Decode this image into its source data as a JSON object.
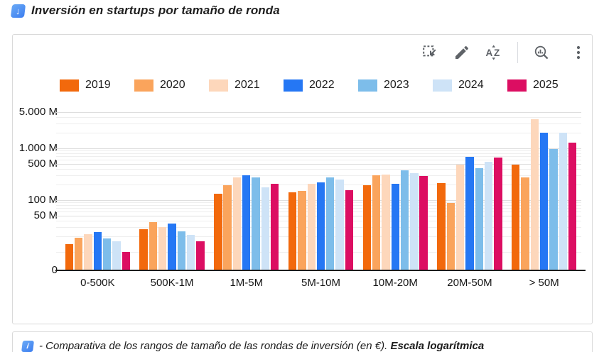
{
  "header": {
    "icon": "down-arrow-emoji",
    "title": "Inversión en startups por tamaño de ronda",
    "icon_glyph": "↓"
  },
  "toolbar": {
    "icons": [
      "select-range-icon",
      "edit-pencil-icon",
      "sort-az-icon",
      "explore-zoom-icon",
      "more-options-icon"
    ]
  },
  "chart_data": {
    "type": "bar",
    "title": "Inversión en startups por tamaño de ronda",
    "x_categories": [
      "0-500K",
      "500K-1M",
      "1M-5M",
      "5M-10M",
      "10M-20M",
      "20M-50M",
      "> 50M"
    ],
    "series": [
      {
        "name": "2019",
        "color": "#F2690C",
        "values": [
          14,
          27,
          133,
          141,
          194,
          213,
          485
        ]
      },
      {
        "name": "2020",
        "color": "#FAA45C",
        "values": [
          19,
          38,
          194,
          151,
          301,
          88,
          276
        ]
      },
      {
        "name": "2021",
        "color": "#FDD7BB",
        "values": [
          22,
          30,
          274,
          207,
          311,
          484,
          3645
        ]
      },
      {
        "name": "2022",
        "color": "#2577F4",
        "values": [
          24,
          35,
          302,
          220,
          207,
          685,
          2000
        ]
      },
      {
        "name": "2023",
        "color": "#7DBDEA",
        "values": [
          18,
          25,
          276,
          274,
          376,
          413,
          970
        ]
      },
      {
        "name": "2024",
        "color": "#CEE3F7",
        "values": [
          16,
          21,
          177,
          250,
          331,
          549,
          1990
        ]
      },
      {
        "name": "2025",
        "color": "#DC0E62",
        "values": [
          10,
          16,
          207,
          156,
          292,
          664,
          1290
        ]
      }
    ],
    "unit": "M (millones de €)",
    "y_axis": {
      "scale": "log",
      "ticks": [
        {
          "value": 5000,
          "label": "5.000 M"
        },
        {
          "value": 1000,
          "label": "1.000 M"
        },
        {
          "value": 500,
          "label": "500 M"
        },
        {
          "value": 100,
          "label": "100 M"
        },
        {
          "value": 50,
          "label": "50 M"
        },
        {
          "value": 0,
          "label": "0"
        }
      ]
    },
    "legend_position": "top",
    "grid": true
  },
  "caption": {
    "icon": "info-emoji",
    "icon_glyph": "i",
    "text": "- Comparativa de los rangos de tamaño de las rondas de inversión (en €). ",
    "bold_text": "Escala logarítmica"
  }
}
